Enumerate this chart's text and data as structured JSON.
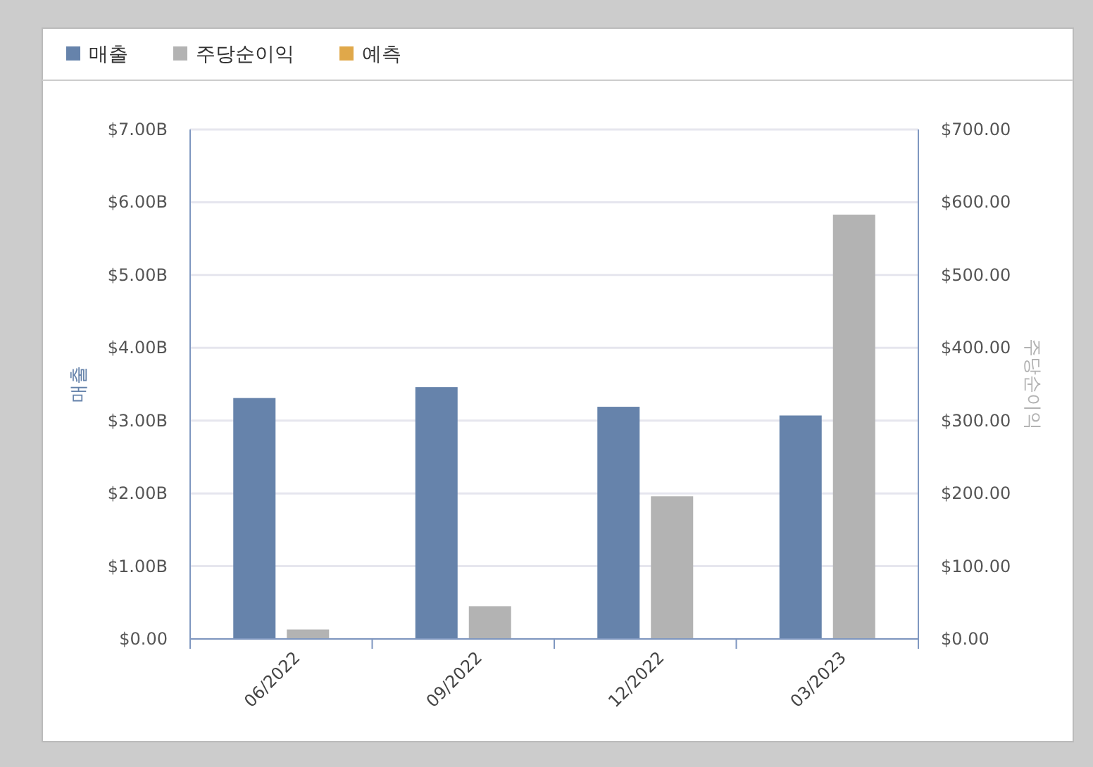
{
  "chart_data": {
    "type": "bar",
    "categories": [
      "06/2022",
      "09/2022",
      "12/2022",
      "03/2023"
    ],
    "ylabel": "매출",
    "y2label": "주당순이익",
    "series": [
      {
        "name": "매출",
        "color": "#6683ab",
        "values": [
          3.31,
          3.46,
          3.19,
          3.07
        ]
      },
      {
        "name": "주당순이익",
        "color": "#b3b3b3",
        "axis": "y2",
        "values": [
          13,
          45,
          196,
          583
        ]
      },
      {
        "name": "예측",
        "color": "#e0a84a",
        "values": [
          null,
          null,
          null,
          null
        ]
      }
    ],
    "ylim": [
      0,
      7
    ],
    "yticks": [
      {
        "value": 0,
        "label": "$0.00"
      },
      {
        "value": 1,
        "label": "$1.00B"
      },
      {
        "value": 2,
        "label": "$2.00B"
      },
      {
        "value": 3,
        "label": "$3.00B"
      },
      {
        "value": 4,
        "label": "$4.00B"
      },
      {
        "value": 5,
        "label": "$5.00B"
      },
      {
        "value": 6,
        "label": "$6.00B"
      },
      {
        "value": 7,
        "label": "$7.00B"
      }
    ],
    "y2lim": [
      0,
      700
    ],
    "y2ticks": [
      {
        "value": 0,
        "label": "$0.00"
      },
      {
        "value": 100,
        "label": "$100.00"
      },
      {
        "value": 200,
        "label": "$200.00"
      },
      {
        "value": 300,
        "label": "$300.00"
      },
      {
        "value": 400,
        "label": "$400.00"
      },
      {
        "value": 500,
        "label": "$500.00"
      },
      {
        "value": 600,
        "label": "$600.00"
      },
      {
        "value": 700,
        "label": "$700.00"
      }
    ],
    "grid": "y",
    "legend": "top left"
  }
}
